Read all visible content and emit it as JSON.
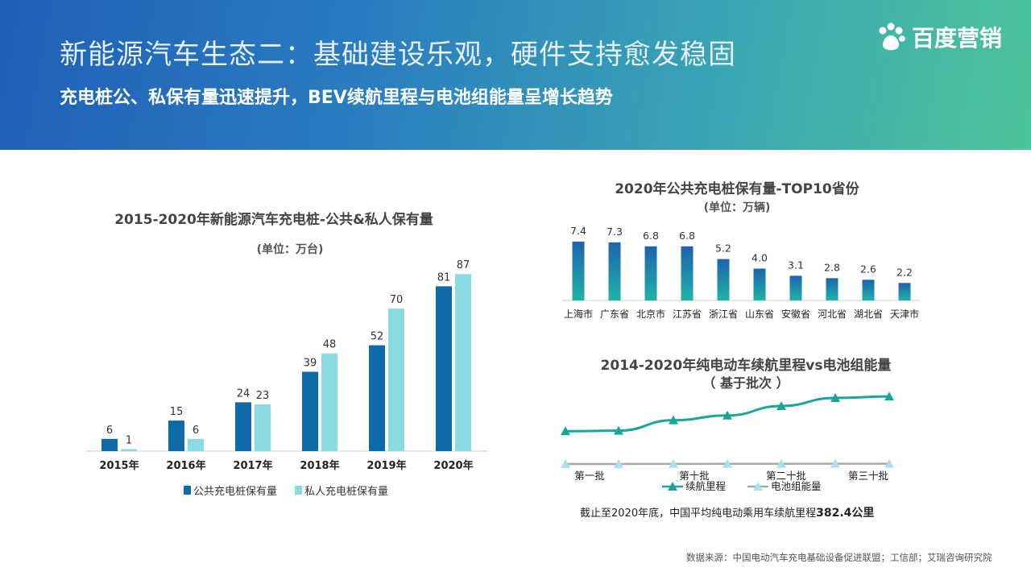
{
  "header": {
    "title": "新能源汽车生态二：基础建设乐观，硬件支持愈发稳固",
    "subtitle": "充电桩公、私保有量迅速提升，BEV续航里程与电池组能量呈增长趋势",
    "logo_text": "百度营销"
  },
  "colors": {
    "public_bar": "#0f6aa8",
    "private_bar": "#8adbe4",
    "top10_bar_top": "#1e63ae",
    "top10_bar_bottom": "#1fb3a6",
    "range_line": "#1aa59a",
    "battery_line": "#a8a8a8",
    "battery_marker": "#a9dff0"
  },
  "chart_data": [
    {
      "type": "bar",
      "title": "2015-2020年新能源汽车充电桩-公共&私人保有量",
      "unit_label": "(单位：万台)",
      "categories": [
        "2015年",
        "2016年",
        "2017年",
        "2018年",
        "2019年",
        "2020年"
      ],
      "series": [
        {
          "name": "公共充电桩保有量",
          "values": [
            6,
            15,
            24,
            39,
            52,
            81
          ]
        },
        {
          "name": "私人充电桩保有量",
          "values": [
            1,
            6,
            23,
            48,
            70,
            87
          ]
        }
      ],
      "ylim": [
        0,
        95
      ],
      "legend": "bottom"
    },
    {
      "type": "bar",
      "title": "2020年公共充电桩保有量-TOP10省份",
      "unit_label": "(单位：万辆)",
      "categories": [
        "上海市",
        "广东省",
        "北京市",
        "江苏省",
        "浙江省",
        "山东省",
        "安徽省",
        "河北省",
        "湖北省",
        "天津市"
      ],
      "values": [
        7.4,
        7.3,
        6.8,
        6.8,
        5.2,
        4.0,
        3.1,
        2.8,
        2.6,
        2.2
      ],
      "value_labels": [
        "7.4",
        "7.3",
        "6.8",
        "6.8",
        "5.2",
        "4.0",
        "3.1",
        "2.8",
        "2.6",
        "2.2"
      ],
      "ylim": [
        0,
        8.5
      ]
    },
    {
      "type": "line",
      "title": "2014-2020年纯电动车续航里程vs电池组能量",
      "subtitle": "（ 基于批次 ）",
      "x_tick_labels": [
        "第一批",
        "第十批",
        "第二十批",
        "第三十批"
      ],
      "series": [
        {
          "name": "续航里程",
          "values": [
            0.25,
            0.26,
            0.48,
            0.58,
            0.78,
            0.95,
            0.98
          ]
        },
        {
          "name": "电池组能量",
          "values": [
            0.0,
            0.0,
            0.02,
            0.03,
            0.04,
            0.05,
            0.05
          ]
        }
      ],
      "legend": "bottom",
      "note_prefix": "截止至2020年底，中国平均纯电动乘用车续航里程",
      "note_value": "382.4公里"
    }
  ],
  "footer": {
    "source": "数据来源：中国电动汽车充电基础设备促进联盟；工信部；艾瑞咨询研究院"
  }
}
